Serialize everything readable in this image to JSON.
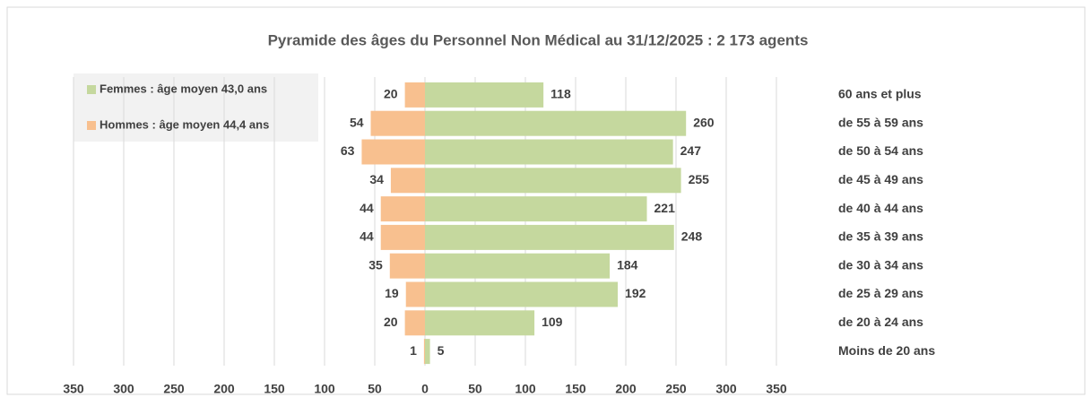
{
  "chart_data": {
    "type": "bar",
    "orientation": "horizontal",
    "title": "Pyramide des âges du Personnel Non Médical au 31/12/2025 : 2 173 agents",
    "categories": [
      "60 ans et plus",
      "de 55 à 59 ans",
      "de 50 à 54 ans",
      "de 45 à 49 ans",
      "de 40 à 44 ans",
      "de 35 à 39 ans",
      "de 30 à 34 ans",
      "de 25 à 29 ans",
      "de 20 à 24 ans",
      "Moins de 20 ans"
    ],
    "series": [
      {
        "name": "Femmes : âge moyen 43,0 ans",
        "color": "#c5d89e",
        "values": [
          118,
          260,
          247,
          255,
          221,
          248,
          184,
          192,
          109,
          5
        ]
      },
      {
        "name": "Hommes : âge moyen 44,4 ans",
        "color": "#f8c08f",
        "values": [
          -20,
          -54,
          -63,
          -34,
          -44,
          -44,
          -35,
          -19,
          -20,
          -1
        ],
        "value_labels": [
          "20",
          "54",
          "63",
          "34",
          "44",
          "44",
          "35",
          "19",
          "20",
          "1"
        ]
      }
    ],
    "xlim": [
      -350,
      350
    ],
    "xticks": [
      {
        "value": -350,
        "label": "350"
      },
      {
        "value": -300,
        "label": "300"
      },
      {
        "value": -250,
        "label": "250"
      },
      {
        "value": -200,
        "label": "200"
      },
      {
        "value": -150,
        "label": "150"
      },
      {
        "value": -100,
        "label": "100"
      },
      {
        "value": -50,
        "label": "50"
      },
      0,
      50,
      100,
      150,
      200,
      250,
      300,
      350
    ],
    "grid": true,
    "legend": "top-left"
  }
}
